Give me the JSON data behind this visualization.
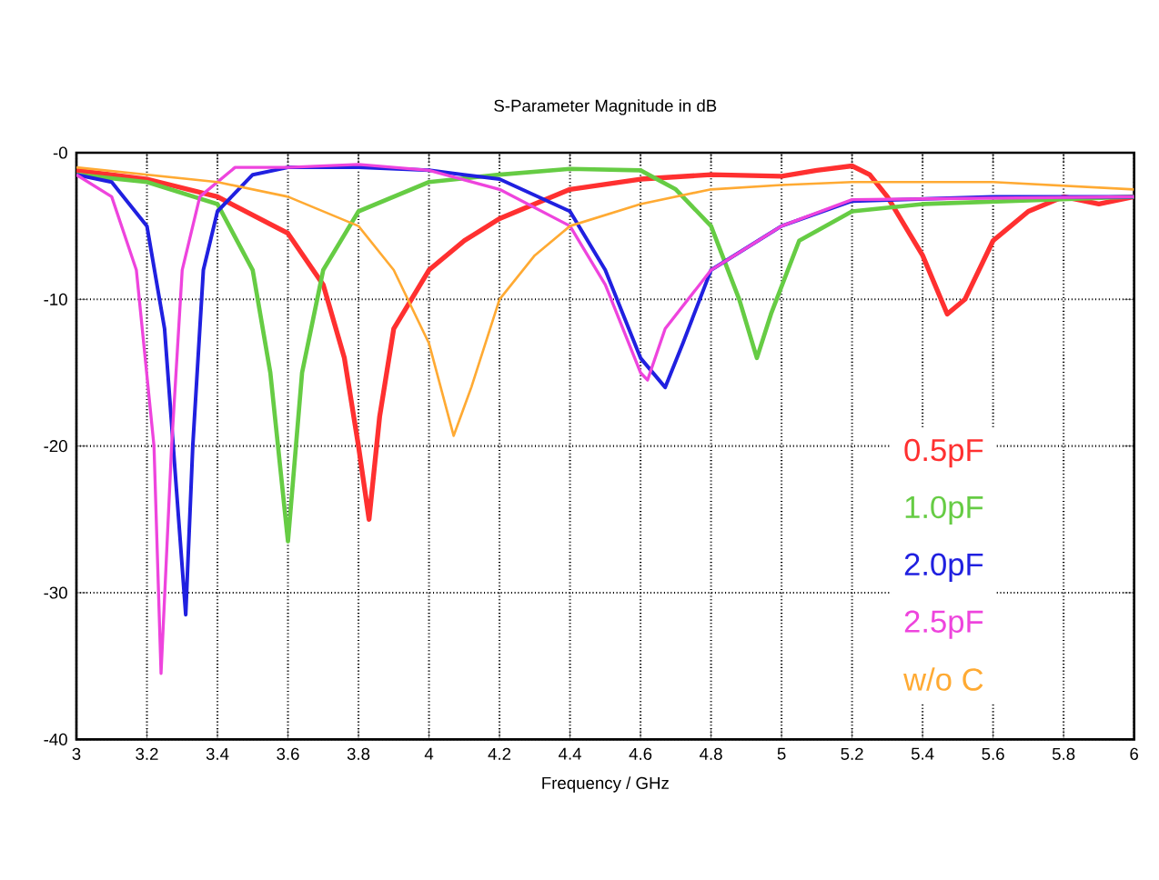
{
  "chart_data": {
    "type": "line",
    "title": "S-Parameter Magnitude in dB",
    "xlabel": "Frequency / GHz",
    "xlim": [
      3,
      6
    ],
    "ylim": [
      -40,
      0
    ],
    "xticks": [
      3,
      3.2,
      3.4,
      3.6,
      3.8,
      4,
      4.2,
      4.4,
      4.6,
      4.8,
      5,
      5.2,
      5.4,
      5.6,
      5.8,
      6
    ],
    "yticks": [
      -40,
      -30,
      -20,
      -10,
      {
        "value": 0,
        "label": "-0"
      }
    ],
    "grid": true,
    "legend": "right",
    "marker": "none",
    "line_style": "solid",
    "series": [
      {
        "name": "0.5pF",
        "color": "#ff3030",
        "x": [
          3,
          3.2,
          3.4,
          3.6,
          3.7,
          3.76,
          3.8,
          3.83,
          3.86,
          3.9,
          4.0,
          4.1,
          4.2,
          4.4,
          4.6,
          4.8,
          5.0,
          5.1,
          5.2,
          5.25,
          5.3,
          5.4,
          5.47,
          5.52,
          5.6,
          5.7,
          5.8,
          5.9,
          6.0
        ],
        "values": [
          -1.2,
          -1.8,
          -3,
          -5.5,
          -9,
          -14,
          -20,
          -25,
          -18,
          -12,
          -8,
          -6,
          -4.5,
          -2.5,
          -1.8,
          -1.5,
          -1.6,
          -1.2,
          -0.9,
          -1.5,
          -3,
          -7,
          -11,
          -10,
          -6,
          -4,
          -3,
          -3.5,
          -3
        ]
      },
      {
        "name": "1.0pF",
        "color": "#66cc44",
        "x": [
          3,
          3.2,
          3.4,
          3.5,
          3.55,
          3.6,
          3.64,
          3.7,
          3.8,
          4.0,
          4.2,
          4.4,
          4.6,
          4.7,
          4.8,
          4.88,
          4.93,
          4.97,
          5.05,
          5.2,
          5.4,
          6.0
        ],
        "values": [
          -1.5,
          -2,
          -3.5,
          -8,
          -15,
          -26.5,
          -15,
          -8,
          -4,
          -2,
          -1.5,
          -1.1,
          -1.2,
          -2.5,
          -5,
          -10,
          -14,
          -11,
          -6,
          -4,
          -3.5,
          -3
        ]
      },
      {
        "name": "2.0pF",
        "color": "#2020e0",
        "x": [
          3,
          3.1,
          3.2,
          3.25,
          3.29,
          3.31,
          3.33,
          3.36,
          3.4,
          3.5,
          3.6,
          3.8,
          4.0,
          4.2,
          4.4,
          4.5,
          4.6,
          4.67,
          4.72,
          4.8,
          5.0,
          5.2,
          5.6,
          6.0
        ],
        "values": [
          -1.5,
          -2,
          -5,
          -12,
          -25,
          -31.5,
          -20,
          -8,
          -4,
          -1.5,
          -1,
          -1,
          -1.2,
          -1.8,
          -4,
          -8,
          -14,
          -16,
          -13,
          -8,
          -5,
          -3.3,
          -3,
          -3
        ]
      },
      {
        "name": "2.5pF",
        "color": "#ee44dd",
        "x": [
          3,
          3.1,
          3.17,
          3.22,
          3.24,
          3.27,
          3.3,
          3.35,
          3.45,
          3.6,
          3.8,
          4.0,
          4.2,
          4.4,
          4.5,
          4.6,
          4.62,
          4.67,
          4.8,
          5.0,
          5.2,
          6.0
        ],
        "values": [
          -1.5,
          -3,
          -8,
          -20,
          -35.5,
          -20,
          -8,
          -3,
          -1,
          -1,
          -0.8,
          -1.2,
          -2.5,
          -5,
          -9,
          -15,
          -15.5,
          -12,
          -8,
          -5,
          -3.2,
          -3
        ]
      },
      {
        "name": "w/o C",
        "color": "#ffaa33",
        "x": [
          3,
          3.4,
          3.6,
          3.8,
          3.9,
          4.0,
          4.07,
          4.12,
          4.2,
          4.3,
          4.4,
          4.6,
          4.8,
          5.0,
          5.2,
          5.6,
          6.0
        ],
        "values": [
          -1,
          -2,
          -3,
          -5,
          -8,
          -13,
          -19.3,
          -16,
          -10,
          -7,
          -5,
          -3.5,
          -2.5,
          -2.2,
          -2,
          -2,
          -2.5
        ]
      }
    ]
  }
}
